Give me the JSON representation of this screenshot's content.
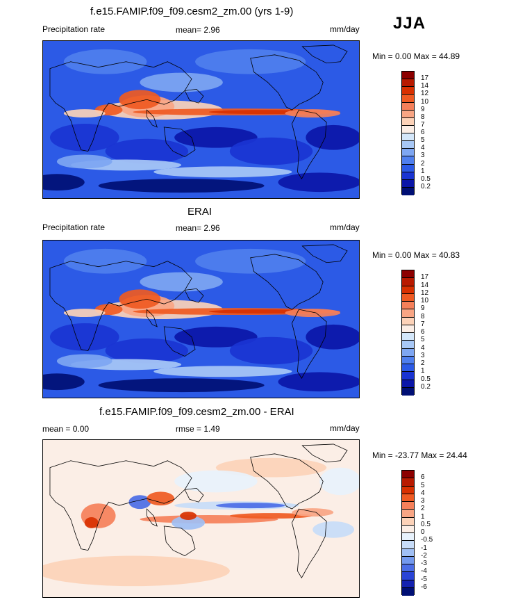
{
  "season": "JJA",
  "panels": [
    {
      "id": "model",
      "title": "f.e15.FAMIP.f09_f09.cesm2_zm.00 (yrs 1-9)",
      "left_label": "Precipitation rate",
      "mid_label": "mean=   2.96",
      "right_label": "mm/day",
      "minmax": "Min =   0.00 Max =  44.89",
      "field": "full",
      "colorbar": {
        "labels": [
          "17",
          "14",
          "12",
          "10",
          "9",
          "8",
          "7",
          "6",
          "5",
          "4",
          "3",
          "2",
          "1",
          "0.5",
          "0.2"
        ],
        "colors": [
          "#8c0000",
          "#b81a00",
          "#d83000",
          "#ef5a22",
          "#f5805a",
          "#f8a584",
          "#fcd2b8",
          "#fbeee6",
          "#d4e7fa",
          "#a8c8f6",
          "#7ea6f2",
          "#4f7fee",
          "#2c5ae6",
          "#1a34d2",
          "#0b16a8",
          "#000f74"
        ]
      }
    },
    {
      "id": "obs",
      "title": "ERAI",
      "left_label": "Precipitation rate",
      "mid_label": "mean=   2.96",
      "right_label": "mm/day",
      "minmax": "Min =   0.00 Max =  40.83",
      "field": "full",
      "colorbar": {
        "labels": [
          "17",
          "14",
          "12",
          "10",
          "9",
          "8",
          "7",
          "6",
          "5",
          "4",
          "3",
          "2",
          "1",
          "0.5",
          "0.2"
        ],
        "colors": [
          "#8c0000",
          "#b81a00",
          "#d83000",
          "#ef5a22",
          "#f5805a",
          "#f8a584",
          "#fcd2b8",
          "#fbeee6",
          "#d4e7fa",
          "#a8c8f6",
          "#7ea6f2",
          "#4f7fee",
          "#2c5ae6",
          "#1a34d2",
          "#0b16a8",
          "#000f74"
        ]
      }
    },
    {
      "id": "diff",
      "title": "f.e15.FAMIP.f09_f09.cesm2_zm.00 - ERAI",
      "left_label": "mean =   0.00",
      "mid_label": "rmse =   1.49",
      "right_label": "mm/day",
      "minmax": "Min = -23.77 Max =  24.44",
      "field": "diff",
      "colorbar": {
        "labels": [
          "6",
          "5",
          "4",
          "3",
          "2",
          "1",
          "0.5",
          "0",
          "-0.5",
          "-1",
          "-2",
          "-3",
          "-4",
          "-5",
          "-6"
        ],
        "colors": [
          "#8c0000",
          "#b81a00",
          "#d83000",
          "#ef5a22",
          "#f5805a",
          "#f8a584",
          "#fcd2b8",
          "#fbeee6",
          "#e8f2fc",
          "#c7dcf8",
          "#a0bff4",
          "#7399ee",
          "#4b6de6",
          "#2a44d6",
          "#1422b0",
          "#000f74"
        ]
      }
    }
  ]
}
